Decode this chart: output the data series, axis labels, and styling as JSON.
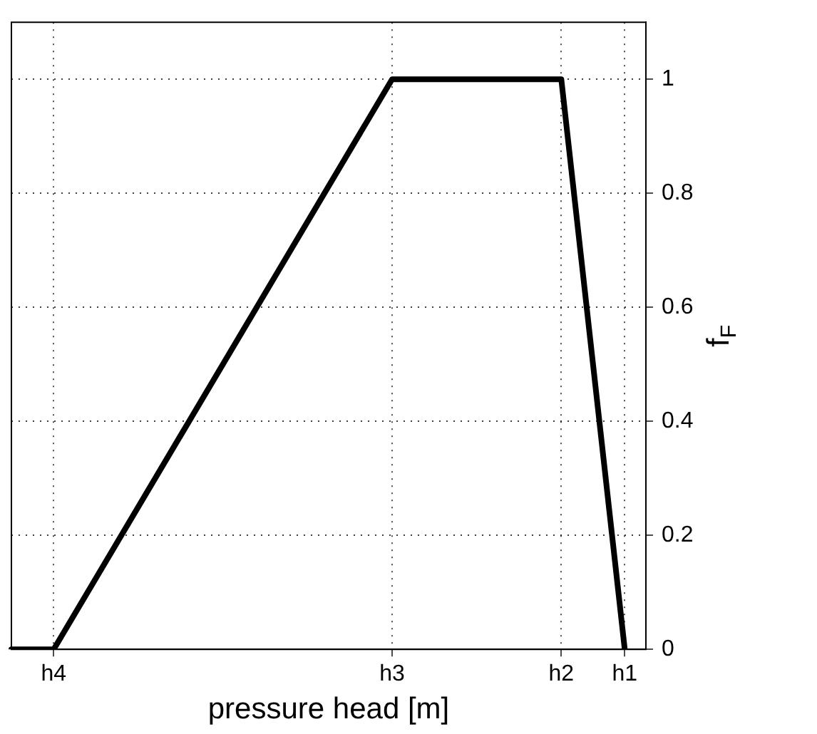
{
  "chart_data": {
    "type": "line",
    "xlabel": "pressure head [m]",
    "ylabel": "f$_{F}$",
    "categories": [
      null,
      null,
      "h4",
      null,
      null,
      null,
      null,
      null,
      null,
      null,
      null,
      null,
      null,
      null,
      null,
      null,
      null,
      null,
      "h3",
      null,
      null,
      null,
      null,
      null,
      null,
      null,
      "h2",
      null,
      null,
      "h1",
      null
    ],
    "ylim": [
      0,
      1.1
    ],
    "yticks": [
      0,
      0.2,
      0.4,
      0.6,
      0.8,
      1
    ],
    "grid": true,
    "legend": false,
    "marker": "none",
    "line_style": "solid",
    "series": [
      {
        "color": "#000000",
        "values": [
          0,
          null,
          0,
          null,
          null,
          null,
          null,
          null,
          null,
          null,
          null,
          null,
          null,
          null,
          null,
          null,
          null,
          null,
          1,
          null,
          null,
          null,
          null,
          null,
          null,
          null,
          1,
          null,
          null,
          0,
          null
        ]
      }
    ]
  }
}
